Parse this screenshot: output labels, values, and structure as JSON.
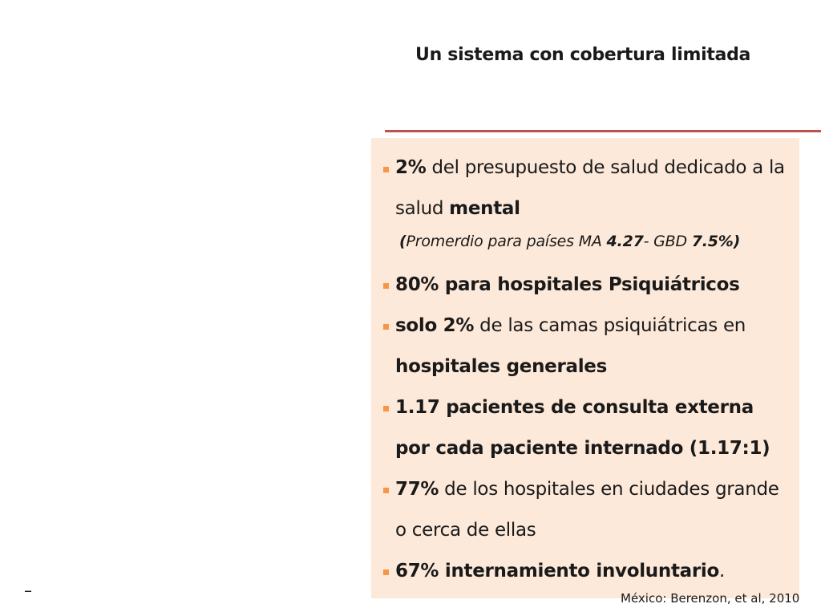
{
  "title": "Un sistema con cobertura limitada",
  "items": [
    {
      "b1": "2%",
      "t1": " del presupuesto de salud  dedicado a la salud ",
      "b2": "mental",
      "t2": ""
    },
    {
      "b1": "80% para hospitales Psiquiátricos",
      "t1": "",
      "b2": "",
      "t2": ""
    },
    {
      "b1": "solo 2%",
      "t1": " de las camas psiquiátricas en ",
      "b2": "hospitales generales",
      "t2": ""
    },
    {
      "b1": "1.17 pacientes de consulta externa por cada paciente internado (1.17:1)",
      "t1": "",
      "b2": "",
      "t2": ""
    },
    {
      "b1": "77%",
      "t1": " de los hospitales en ciudades grande o cerca de ellas",
      "b2": "",
      "t2": ""
    },
    {
      "b1": "67% internamiento involuntario",
      "t1": ".",
      "b2": "",
      "t2": ""
    }
  ],
  "note": {
    "p1": "(",
    "p2": "Promerdio para países MA  ",
    "b1": "4.27",
    "p3": "- GBD ",
    "b2": "7.5%",
    "p4": ")"
  },
  "citation": "México: Berenzon, et al, 2010",
  "footer_mark": "–",
  "colors": {
    "accent_rule": "#c0504d",
    "panel_bg": "#fde9d9",
    "bullet": "#f79646"
  }
}
